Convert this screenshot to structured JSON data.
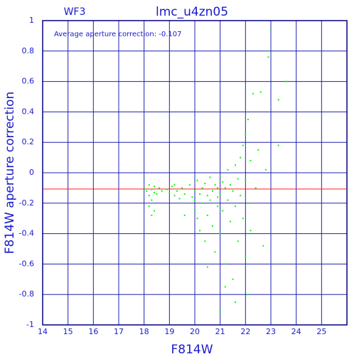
{
  "chart_data": {
    "type": "scatter",
    "title": "lmc_u4zn05",
    "label_left": "WF3",
    "annotation": "Average aperture correction: -0.107",
    "x_label": "F814W",
    "y_label": "F814W aperture correction",
    "mean_line": -0.107,
    "mean_line_color": "#ff2020",
    "color": "#00ff00",
    "grid": true,
    "xlim": [
      14,
      26
    ],
    "xticks": [
      14,
      15,
      16,
      17,
      18,
      19,
      20,
      21,
      22,
      23,
      24,
      25
    ],
    "ylim": [
      -1,
      1
    ],
    "yticks": [
      -1,
      -0.8,
      -0.6,
      -0.4,
      -0.2,
      0,
      0.2,
      0.4,
      0.6,
      0.8,
      1
    ],
    "x": [
      18.0,
      18.1,
      18.2,
      18.2,
      18.3,
      18.3,
      18.4,
      18.4,
      18.5,
      18.2,
      18.6,
      18.7,
      18.9,
      19.0,
      19.1,
      19.2,
      19.3,
      19.4,
      19.5,
      19.6,
      19.7,
      19.8,
      19.9,
      20.0,
      20.0,
      20.1,
      20.1,
      20.2,
      20.2,
      20.3,
      20.3,
      20.4,
      20.4,
      20.5,
      20.5,
      20.6,
      20.6,
      20.7,
      20.7,
      20.8,
      20.8,
      20.9,
      20.9,
      21.0,
      21.0,
      21.0,
      21.1,
      21.1,
      21.2,
      21.2,
      21.3,
      21.3,
      21.4,
      21.4,
      21.5,
      21.5,
      21.6,
      21.6,
      21.7,
      21.7,
      21.8,
      21.8,
      21.9,
      21.9,
      22.0,
      22.0,
      22.0,
      22.1,
      22.1,
      22.1,
      22.2,
      22.2,
      22.3,
      22.4,
      22.5,
      22.6,
      22.7,
      22.8,
      22.8,
      22.9,
      23.0,
      23.3,
      23.3,
      23.6,
      19.6,
      20.0,
      18.3,
      21.0,
      20.5,
      21.2,
      18.4,
      19.2,
      20.9,
      21.6
    ],
    "y": [
      -0.1,
      -0.12,
      -0.08,
      -0.15,
      -0.11,
      -0.18,
      -0.13,
      -0.09,
      -0.14,
      -0.22,
      -0.1,
      -0.12,
      -0.11,
      -0.13,
      -0.09,
      -0.15,
      -0.12,
      -0.17,
      -0.1,
      -0.14,
      -0.2,
      -0.08,
      -0.16,
      -0.12,
      -0.25,
      -0.05,
      -0.3,
      -0.14,
      -0.38,
      -0.1,
      -0.2,
      -0.07,
      -0.45,
      -0.15,
      -0.28,
      -0.03,
      -0.18,
      -0.12,
      -0.35,
      -0.08,
      -0.52,
      -0.16,
      -0.22,
      -0.02,
      -0.14,
      -0.4,
      -0.06,
      -0.25,
      -0.1,
      -0.6,
      0.02,
      -0.18,
      -0.08,
      -0.32,
      -0.12,
      -0.7,
      0.05,
      -0.22,
      -0.04,
      -0.45,
      0.1,
      -0.15,
      -0.3,
      0.18,
      -0.05,
      -0.55,
      0.25,
      -0.2,
      -0.8,
      0.35,
      0.08,
      -0.38,
      0.52,
      -0.1,
      0.15,
      0.53,
      -0.48,
      0.02,
      0.8,
      0.76,
      0.93,
      0.48,
      0.18,
      0.6,
      -0.28,
      -0.18,
      -0.28,
      -0.92,
      -0.62,
      -0.75,
      -0.25,
      -0.08,
      -0.1,
      -0.85
    ]
  }
}
